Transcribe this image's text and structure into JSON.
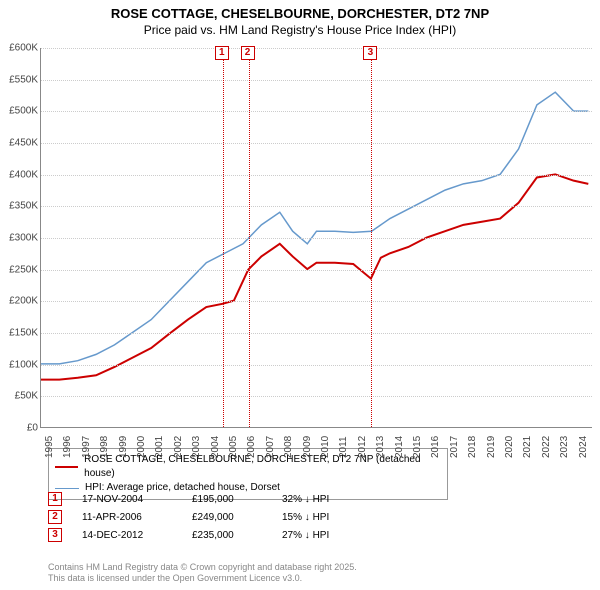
{
  "title": "ROSE COTTAGE, CHESELBOURNE, DORCHESTER, DT2 7NP",
  "subtitle": "Price paid vs. HM Land Registry's House Price Index (HPI)",
  "chart": {
    "type": "line",
    "x_years": [
      1995,
      1996,
      1997,
      1998,
      1999,
      2000,
      2001,
      2002,
      2003,
      2004,
      2005,
      2006,
      2007,
      2008,
      2009,
      2010,
      2011,
      2012,
      2013,
      2014,
      2015,
      2016,
      2017,
      2018,
      2019,
      2020,
      2021,
      2022,
      2023,
      2024
    ],
    "xlim": [
      1995,
      2025
    ],
    "ylim": [
      0,
      600000
    ],
    "ytick_step": 50000,
    "y_tick_labels": [
      "£0",
      "£50K",
      "£100K",
      "£150K",
      "£200K",
      "£250K",
      "£300K",
      "£350K",
      "£400K",
      "£450K",
      "£500K",
      "£550K",
      "£600K"
    ],
    "grid_color": "#cccccc",
    "axis_color": "#888888",
    "background_color": "#ffffff",
    "series": [
      {
        "name": "property",
        "label": "ROSE COTTAGE, CHESELBOURNE, DORCHESTER, DT2 7NP (detached house)",
        "color": "#cc0000",
        "line_width": 2,
        "points": [
          [
            1995.0,
            75000
          ],
          [
            1996.0,
            75000
          ],
          [
            1997.0,
            78000
          ],
          [
            1998.0,
            82000
          ],
          [
            1999.0,
            95000
          ],
          [
            2000.0,
            110000
          ],
          [
            2001.0,
            125000
          ],
          [
            2002.0,
            148000
          ],
          [
            2003.0,
            170000
          ],
          [
            2004.0,
            190000
          ],
          [
            2004.88,
            195000
          ],
          [
            2005.5,
            200000
          ],
          [
            2006.28,
            249000
          ],
          [
            2007.0,
            270000
          ],
          [
            2008.0,
            290000
          ],
          [
            2008.7,
            270000
          ],
          [
            2009.5,
            250000
          ],
          [
            2010.0,
            260000
          ],
          [
            2011.0,
            260000
          ],
          [
            2012.0,
            258000
          ],
          [
            2012.96,
            235000
          ],
          [
            2013.5,
            268000
          ],
          [
            2014.0,
            275000
          ],
          [
            2015.0,
            285000
          ],
          [
            2016.0,
            300000
          ],
          [
            2017.0,
            310000
          ],
          [
            2018.0,
            320000
          ],
          [
            2019.0,
            325000
          ],
          [
            2020.0,
            330000
          ],
          [
            2021.0,
            355000
          ],
          [
            2022.0,
            395000
          ],
          [
            2023.0,
            400000
          ],
          [
            2024.0,
            390000
          ],
          [
            2024.8,
            385000
          ]
        ]
      },
      {
        "name": "hpi",
        "label": "HPI: Average price, detached house, Dorset",
        "color": "#6699cc",
        "line_width": 1.5,
        "points": [
          [
            1995.0,
            100000
          ],
          [
            1996.0,
            100000
          ],
          [
            1997.0,
            105000
          ],
          [
            1998.0,
            115000
          ],
          [
            1999.0,
            130000
          ],
          [
            2000.0,
            150000
          ],
          [
            2001.0,
            170000
          ],
          [
            2002.0,
            200000
          ],
          [
            2003.0,
            230000
          ],
          [
            2004.0,
            260000
          ],
          [
            2005.0,
            275000
          ],
          [
            2006.0,
            290000
          ],
          [
            2007.0,
            320000
          ],
          [
            2008.0,
            340000
          ],
          [
            2008.7,
            310000
          ],
          [
            2009.5,
            290000
          ],
          [
            2010.0,
            310000
          ],
          [
            2011.0,
            310000
          ],
          [
            2012.0,
            308000
          ],
          [
            2013.0,
            310000
          ],
          [
            2014.0,
            330000
          ],
          [
            2015.0,
            345000
          ],
          [
            2016.0,
            360000
          ],
          [
            2017.0,
            375000
          ],
          [
            2018.0,
            385000
          ],
          [
            2019.0,
            390000
          ],
          [
            2020.0,
            400000
          ],
          [
            2021.0,
            440000
          ],
          [
            2022.0,
            510000
          ],
          [
            2023.0,
            530000
          ],
          [
            2024.0,
            500000
          ],
          [
            2024.8,
            500000
          ]
        ]
      }
    ],
    "markers": [
      {
        "n": "1",
        "x": 2004.88,
        "color": "#cc0000"
      },
      {
        "n": "2",
        "x": 2006.28,
        "color": "#cc0000"
      },
      {
        "n": "3",
        "x": 2012.96,
        "color": "#cc0000"
      }
    ]
  },
  "legend": {
    "items": [
      {
        "color": "#cc0000",
        "width": 2,
        "label": "ROSE COTTAGE, CHESELBOURNE, DORCHESTER, DT2 7NP (detached house)"
      },
      {
        "color": "#6699cc",
        "width": 1.5,
        "label": "HPI: Average price, detached house, Dorset"
      }
    ]
  },
  "sales": [
    {
      "n": "1",
      "date": "17-NOV-2004",
      "price": "£195,000",
      "pct": "32% ↓ HPI"
    },
    {
      "n": "2",
      "date": "11-APR-2006",
      "price": "£249,000",
      "pct": "15% ↓ HPI"
    },
    {
      "n": "3",
      "date": "14-DEC-2012",
      "price": "£235,000",
      "pct": "27% ↓ HPI"
    }
  ],
  "footer_line1": "Contains HM Land Registry data © Crown copyright and database right 2025.",
  "footer_line2": "This data is licensed under the Open Government Licence v3.0."
}
